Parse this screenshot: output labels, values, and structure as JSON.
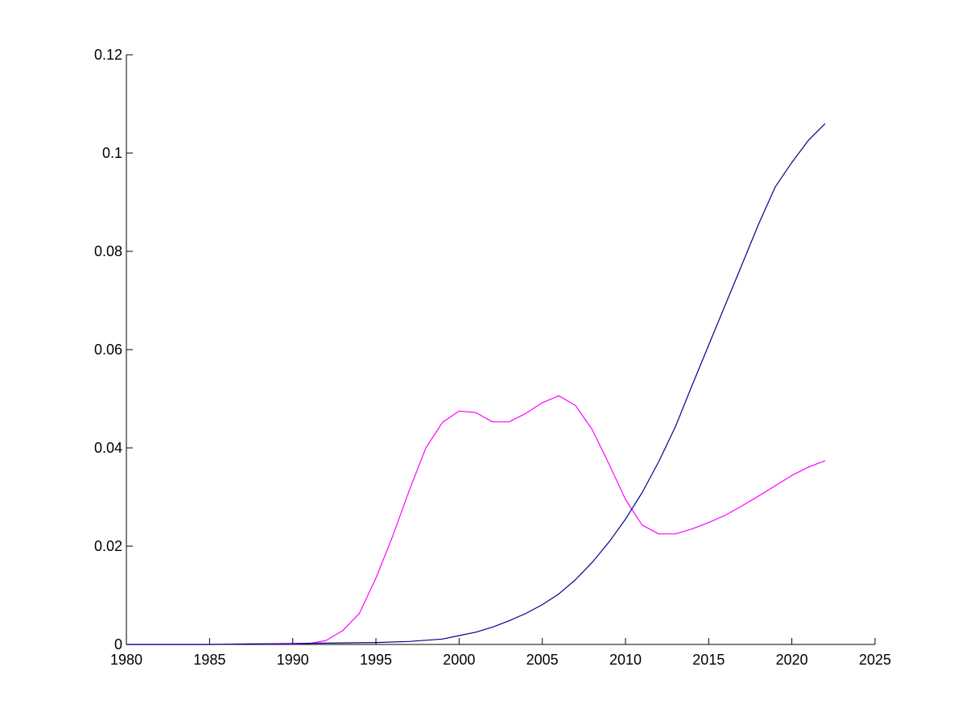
{
  "chart_data": {
    "type": "line",
    "title": "",
    "xlabel": "",
    "ylabel": "",
    "xlim": [
      1980,
      2025
    ],
    "ylim": [
      0,
      0.12
    ],
    "grid": false,
    "x_ticks": [
      1980,
      1985,
      1990,
      1995,
      2000,
      2005,
      2010,
      2015,
      2020,
      2025
    ],
    "x_tick_labels": [
      "1980",
      "1985",
      "1990",
      "1995",
      "2000",
      "2005",
      "2010",
      "2015",
      "2020",
      "2025"
    ],
    "y_ticks": [
      0,
      0.02,
      0.04,
      0.06,
      0.08,
      0.1,
      0.12
    ],
    "y_tick_labels": [
      "0",
      "0.02",
      "0.04",
      "0.06",
      "0.08",
      "0.1",
      "0.12"
    ],
    "series": [
      {
        "color": "#ff00ff",
        "x": [
          1980,
          1985,
          1987,
          1990,
          1991,
          1992,
          1993,
          1994,
          1995,
          1996,
          1997,
          1998,
          1999,
          2000,
          2001,
          2002,
          2003,
          2004,
          2005,
          2006,
          2007,
          2008,
          2009,
          2010,
          2011,
          2012,
          2013,
          2014,
          2015,
          2016,
          2017,
          2018,
          2019,
          2020,
          2021,
          2022
        ],
        "y": [
          0,
          0,
          0.0001,
          0.0001,
          0.0002,
          0.0008,
          0.0028,
          0.0063,
          0.0135,
          0.022,
          0.0313,
          0.04,
          0.0452,
          0.0475,
          0.0472,
          0.0453,
          0.0453,
          0.047,
          0.0492,
          0.0506,
          0.0486,
          0.0437,
          0.0368,
          0.0295,
          0.0243,
          0.0225,
          0.0225,
          0.0235,
          0.0248,
          0.0263,
          0.0282,
          0.0302,
          0.0323,
          0.0344,
          0.0361,
          0.0374
        ]
      },
      {
        "color": "#00008b",
        "x": [
          1980,
          1985,
          1990,
          1995,
          1997,
          1999,
          2000,
          2001,
          2002,
          2003,
          2004,
          2005,
          2006,
          2007,
          2008,
          2009,
          2010,
          2011,
          2012,
          2013,
          2014,
          2015,
          2016,
          2017,
          2018,
          2019,
          2020,
          2021,
          2022
        ],
        "y": [
          0,
          0,
          0.0002,
          0.0004,
          0.0006,
          0.0011,
          0.0018,
          0.0025,
          0.0035,
          0.0048,
          0.0063,
          0.0081,
          0.0103,
          0.0132,
          0.0167,
          0.0208,
          0.0255,
          0.0309,
          0.0372,
          0.0443,
          0.0527,
          0.0609,
          0.0691,
          0.0773,
          0.0855,
          0.0931,
          0.0981,
          0.1026,
          0.106
        ]
      }
    ]
  }
}
